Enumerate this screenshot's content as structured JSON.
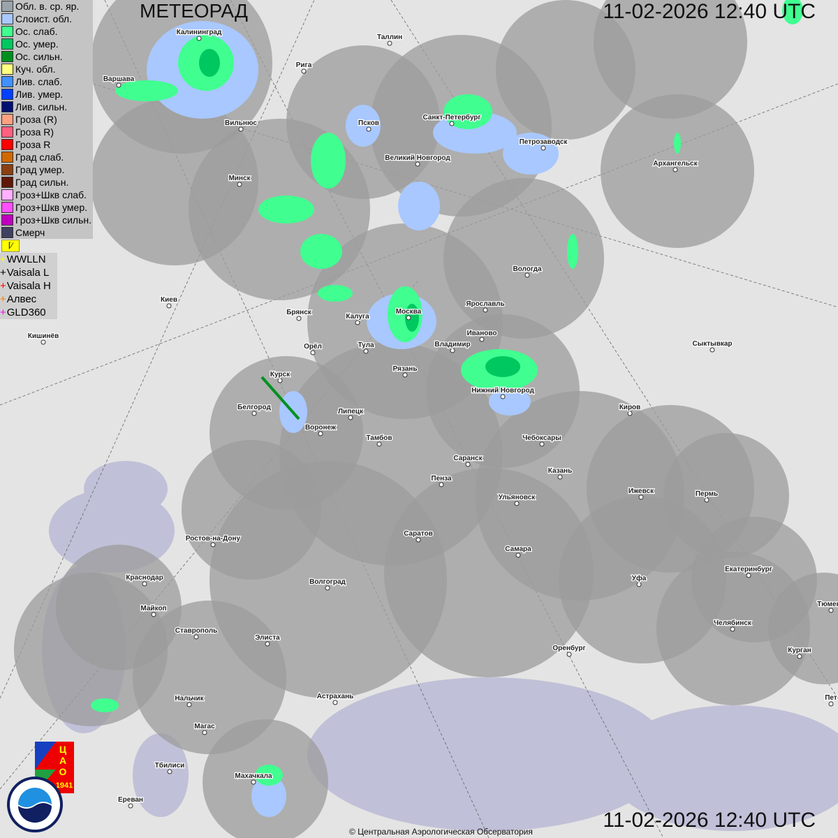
{
  "header": {
    "title": "МЕТЕОРАД",
    "datetime_top": "11-02-2026  12:40 UTC",
    "datetime_bottom": "11-02-2026  12:40 UTC"
  },
  "legend": [
    {
      "label": "Обл. в. ср. яр.",
      "color": "#9aa4aa"
    },
    {
      "label": "Слоист. обл.",
      "color": "#a8c8ff"
    },
    {
      "label": "Ос. слаб.",
      "color": "#40ff90"
    },
    {
      "label": "Ос. умер.",
      "color": "#00c860"
    },
    {
      "label": "Ос. сильн.",
      "color": "#009020"
    },
    {
      "label": "Куч. обл.",
      "color": "#ffff80"
    },
    {
      "label": "Лив. слаб.",
      "color": "#4090ff"
    },
    {
      "label": "Лив. умер.",
      "color": "#0040ff"
    },
    {
      "label": "Лив. сильн.",
      "color": "#001070"
    },
    {
      "label": "Гроза (R)",
      "color": "#ffa080"
    },
    {
      "label": "Гроза R)",
      "color": "#ff6080"
    },
    {
      "label": "Гроза R",
      "color": "#ff0000"
    },
    {
      "label": "Град слаб.",
      "color": "#d06800"
    },
    {
      "label": "Град умер.",
      "color": "#8a4010"
    },
    {
      "label": "Град сильн.",
      "color": "#601808"
    },
    {
      "label": "Гроз+Шкв слаб.",
      "color": "#ffb0ff"
    },
    {
      "label": "Гроз+Шкв умер.",
      "color": "#ff50ff"
    },
    {
      "label": "Гроз+Шкв сильн.",
      "color": "#c000c0"
    },
    {
      "label": "Смерч",
      "color": "#404060"
    }
  ],
  "lightning": [
    {
      "label": "WWLLN",
      "color": "#ffff00"
    },
    {
      "label": "Vaisala L",
      "color": "#000000"
    },
    {
      "label": "Vaisala H",
      "color": "#ff0000"
    },
    {
      "label": "Алвес",
      "color": "#ff8000"
    },
    {
      "label": "GLD360",
      "color": "#ff00ff"
    }
  ],
  "flag_icon": "yellow-flag-toggle",
  "cities": [
    "Калининград",
    "Варшава",
    "Таллин",
    "Рига",
    "Псков",
    "Санкт-Петербург",
    "Петрозаводск",
    "Вильнюс",
    "Великий Новгород",
    "Архангельск",
    "Минск",
    "Вологда",
    "Киев",
    "Ярославль",
    "Брянск",
    "Калуга",
    "Москва",
    "Иваново",
    "Кишинёв",
    "Орёл",
    "Тула",
    "Владимир",
    "Сыктывкар",
    "Рязань",
    "Курск",
    "Нижний Новгород",
    "Белгород",
    "Липецк",
    "Киров",
    "Воронеж",
    "Тамбов",
    "Чебоксары",
    "Саранск",
    "Казань",
    "Пенза",
    "Ижевск",
    "Пермь",
    "Ульяновск",
    "Ростов-на-Дону",
    "Саратов",
    "Самара",
    "Краснодар",
    "Екатеринбург",
    "Волгоград",
    "Уфа",
    "Тюмень",
    "Майкоп",
    "Челябинск",
    "Ставрополь",
    "Элиста",
    "Оренбург",
    "Курган",
    "Астрахань",
    "Нальчик",
    "Магас",
    "Тбилиси",
    "Махачкала",
    "Ереван",
    "Пет"
  ],
  "logos": {
    "cao": "ЦАО 1941",
    "roshydromet": "РОСГИДРОМЕТ ROSHYDROMET"
  },
  "copyright": "© Центральная Аэрологическая Обсерватория"
}
